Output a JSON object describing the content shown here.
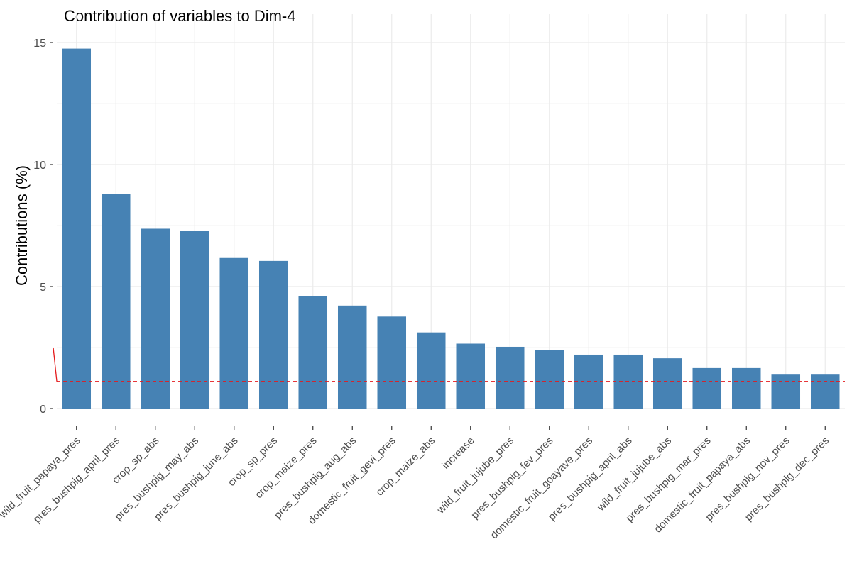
{
  "chart_data": {
    "type": "bar",
    "title": "Contribution of variables to Dim-4",
    "xlabel": "",
    "ylabel": "Contributions (%)",
    "ylim": [
      0,
      15
    ],
    "yticks": [
      0,
      5,
      10,
      15
    ],
    "grid": true,
    "categories": [
      "wild_fruit_papaya_pres",
      "pres_bushpig_april_pres",
      "crop_sp_abs",
      "pres_bushpig_may_abs",
      "pres_bushpig_june_abs",
      "crop_sp_pres",
      "crop_maize_pres",
      "pres_bushpig_aug_abs",
      "domestic_fruit_gevi_pres",
      "crop_maize_abs",
      "increase",
      "wild_fruit_jujube_pres",
      "pres_bushpig_fev_pres",
      "domestic_fruit_goayave_pres",
      "pres_bushpig_april_abs",
      "wild_fruit_jujube_abs",
      "pres_bushpig_mar_pres",
      "domestic_fruit_papaya_abs",
      "pres_bushpig_nov_pres",
      "pres_bushpig_dec_pres"
    ],
    "values": [
      14.75,
      8.8,
      7.37,
      7.27,
      6.17,
      6.05,
      4.62,
      4.22,
      3.77,
      3.12,
      2.66,
      2.53,
      2.4,
      2.21,
      2.21,
      2.06,
      1.66,
      1.66,
      1.39,
      1.39
    ],
    "reference_line": {
      "value": 1.11,
      "style": "dashed"
    },
    "colors": {
      "bar": "#4682B4",
      "reference_line": "#E41A1C",
      "grid": "#EBEBEB"
    }
  }
}
